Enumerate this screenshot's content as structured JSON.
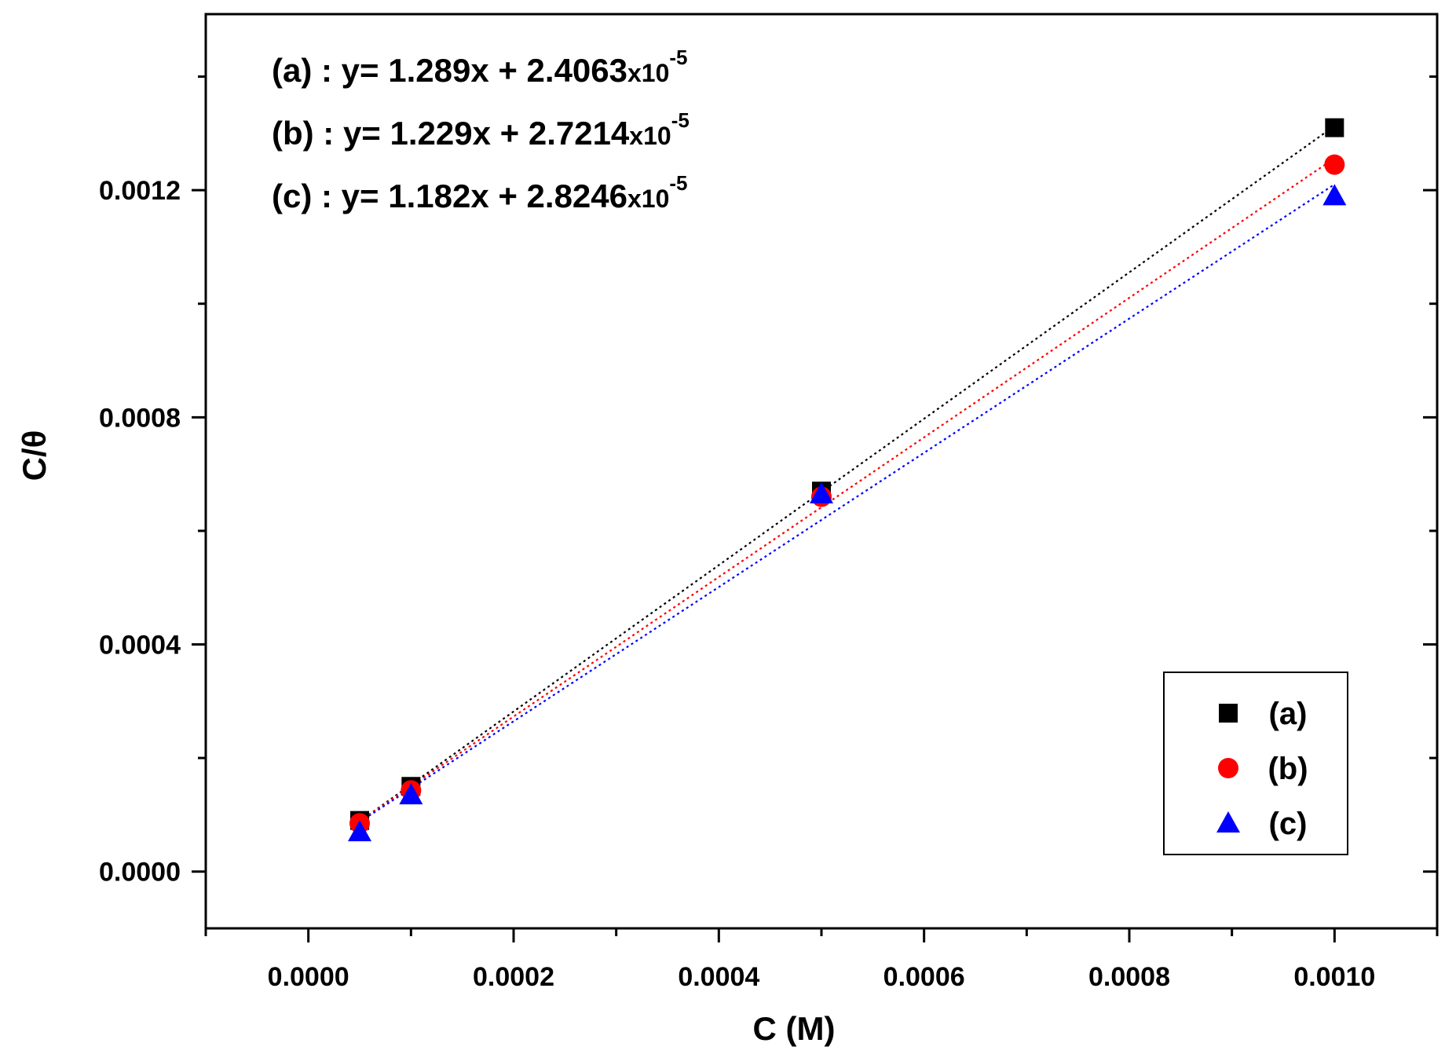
{
  "chart_data": {
    "type": "scatter",
    "title": "",
    "xlabel": "C (M)",
    "ylabel": "C/θ",
    "xlim": [
      -0.0001,
      0.0011
    ],
    "ylim": [
      -0.0001,
      0.00151
    ],
    "xticks": [
      0.0,
      0.0002,
      0.0004,
      0.0006,
      0.0008,
      0.001
    ],
    "xtick_labels": [
      "0.0000",
      "0.0002",
      "0.0004",
      "0.0006",
      "0.0008",
      "0.0010"
    ],
    "yticks": [
      0.0,
      0.0004,
      0.0008,
      0.0012
    ],
    "ytick_labels": [
      "0.0000",
      "0.0004",
      "0.0008",
      "0.0012"
    ],
    "grid": false,
    "legend_position": "bottom-right",
    "x": [
      5e-05,
      0.0001,
      0.0005,
      0.001
    ],
    "series": [
      {
        "name": "(a)",
        "marker": "square",
        "color": "#000000",
        "values": [
          9e-05,
          0.00015,
          0.00067,
          0.00131
        ],
        "fit": {
          "slope": 1.289,
          "intercept": 2.4063e-05,
          "label": "(a) : y= 1.289x + 2.4063",
          "times": "x10",
          "exponent": "-5"
        }
      },
      {
        "name": "(b)",
        "marker": "circle",
        "color": "#ff0000",
        "values": [
          8.5e-05,
          0.000143,
          0.00066,
          0.001245
        ],
        "fit": {
          "slope": 1.229,
          "intercept": 2.7214e-05,
          "label": "(b) : y= 1.229x + 2.7214",
          "times": "x10",
          "exponent": "-5"
        }
      },
      {
        "name": "(c)",
        "marker": "triangle",
        "color": "#0000ff",
        "values": [
          7e-05,
          0.000135,
          0.000665,
          0.00119
        ],
        "fit": {
          "slope": 1.182,
          "intercept": 2.8246e-05,
          "label": "(c) : y= 1.182x + 2.8246",
          "times": "x10",
          "exponent": "-5"
        }
      }
    ]
  }
}
